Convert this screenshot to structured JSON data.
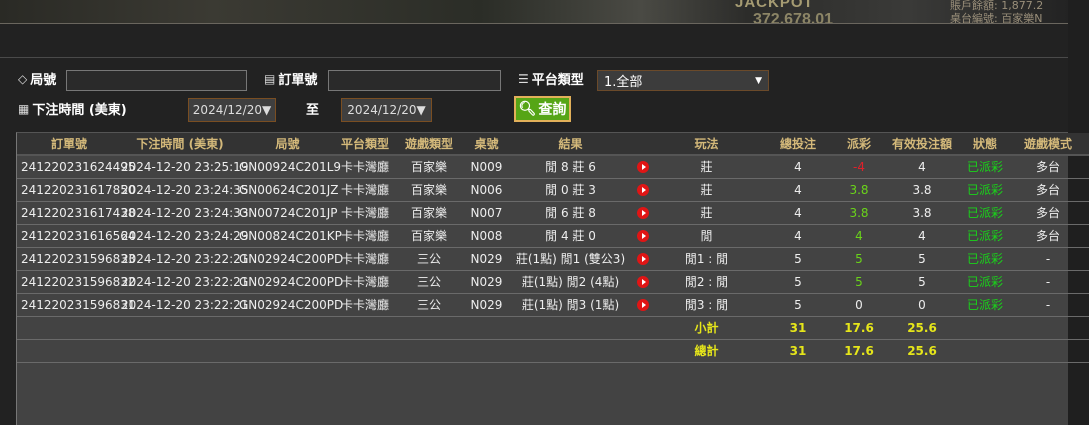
{
  "banner": {
    "jackpot_label": "JACKPOT",
    "jackpot_value": "372,678.01",
    "balance_label": "賬戶餘額: 1,877.2",
    "table_label": "桌台編號: 百家樂N"
  },
  "filters": {
    "round_label": "局號",
    "round_value": "",
    "order_label": "訂單號",
    "order_value": "",
    "platform_label": "平台類型",
    "platform_selected": "1.全部",
    "time_label": "下注時間 (美東)",
    "date_from": "2024/12/20▼",
    "to_label": "至",
    "date_to": "2024/12/20▼",
    "search_label": "查詢"
  },
  "table": {
    "headers": [
      "訂單號",
      "下注時間 (美東)",
      "局號",
      "平台類型",
      "遊戲類型",
      "桌號",
      "結果",
      "",
      "玩法",
      "總投注",
      "派彩",
      "有效投注額",
      "狀態",
      "遊戲模式"
    ],
    "rows": [
      {
        "order": "241220231624495",
        "time": "2024-12-20 23:25:19",
        "round": "GN00924C201L9",
        "platform": "卡卡灣廳",
        "game": "百家樂",
        "table": "N009",
        "result": "閒 8 莊 6",
        "play": "莊",
        "bet": "4",
        "payout": "-4",
        "valid": "4",
        "status": "已派彩",
        "mode": "多台"
      },
      {
        "order": "241220231617850",
        "time": "2024-12-20 23:24:35",
        "round": "GN00624C201JZ",
        "platform": "卡卡灣廳",
        "game": "百家樂",
        "table": "N006",
        "result": "閒 0 莊 3",
        "play": "莊",
        "bet": "4",
        "payout": "3.8",
        "valid": "3.8",
        "status": "已派彩",
        "mode": "多台"
      },
      {
        "order": "241220231617438",
        "time": "2024-12-20 23:24:33",
        "round": "GN00724C201JP",
        "platform": "卡卡灣廳",
        "game": "百家樂",
        "table": "N007",
        "result": "閒 6 莊 8",
        "play": "莊",
        "bet": "4",
        "payout": "3.8",
        "valid": "3.8",
        "status": "已派彩",
        "mode": "多台"
      },
      {
        "order": "241220231616564",
        "time": "2024-12-20 23:24:29",
        "round": "GN00824C201KP",
        "platform": "卡卡灣廳",
        "game": "百家樂",
        "table": "N008",
        "result": "閒 4 莊 0",
        "play": "閒",
        "bet": "4",
        "payout": "4",
        "valid": "4",
        "status": "已派彩",
        "mode": "多台"
      },
      {
        "order": "241220231596833",
        "time": "2024-12-20 23:22:21",
        "round": "GN02924C200PD",
        "platform": "卡卡灣廳",
        "game": "三公",
        "table": "N029",
        "result": "莊(1點) 閒1 (雙公3)",
        "play": "閒1 : 閒",
        "bet": "5",
        "payout": "5",
        "valid": "5",
        "status": "已派彩",
        "mode": "-"
      },
      {
        "order": "241220231596832",
        "time": "2024-12-20 23:22:21",
        "round": "GN02924C200PD",
        "platform": "卡卡灣廳",
        "game": "三公",
        "table": "N029",
        "result": "莊(1點) 閒2 (4點)",
        "play": "閒2 : 閒",
        "bet": "5",
        "payout": "5",
        "valid": "5",
        "status": "已派彩",
        "mode": "-"
      },
      {
        "order": "241220231596831",
        "time": "2024-12-20 23:22:21",
        "round": "GN02924C200PD",
        "platform": "卡卡灣廳",
        "game": "三公",
        "table": "N029",
        "result": "莊(1點) 閒3 (1點)",
        "play": "閒3 : 閒",
        "bet": "5",
        "payout": "0",
        "valid": "0",
        "status": "已派彩",
        "mode": "-"
      }
    ],
    "subtotal": {
      "label": "小計",
      "bet": "31",
      "payout": "17.6",
      "valid": "25.6"
    },
    "total": {
      "label": "總計",
      "bet": "31",
      "payout": "17.6",
      "valid": "25.6"
    }
  },
  "colors": {
    "header_text": "#d4b97a",
    "status_ok": "#19d419",
    "payout_negative": "#e0202a",
    "payout_positive": "#6ad41a",
    "totals": "#e6e61a",
    "search_button": "#56a516"
  }
}
